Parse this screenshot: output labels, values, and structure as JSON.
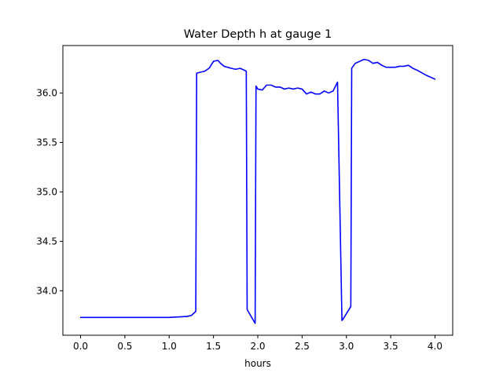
{
  "chart_data": {
    "type": "line",
    "title": "Water Depth h at gauge 1",
    "xlabel": "hours",
    "ylabel": "",
    "xlim": [
      -0.2,
      4.2
    ],
    "ylim": [
      33.55,
      36.48
    ],
    "grid": false,
    "legend": "none",
    "x_ticks": [
      0.0,
      0.5,
      1.0,
      1.5,
      2.0,
      2.5,
      3.0,
      3.5,
      4.0
    ],
    "x_tick_labels": [
      "0.0",
      "0.5",
      "1.0",
      "1.5",
      "2.0",
      "2.5",
      "3.0",
      "3.5",
      "4.0"
    ],
    "y_ticks": [
      34.0,
      34.5,
      35.0,
      35.5,
      36.0
    ],
    "y_tick_labels": [
      "34.0",
      "34.5",
      "35.0",
      "35.5",
      "36.0"
    ],
    "series": [
      {
        "color": "#0000ff",
        "x": [
          0.0,
          0.2,
          0.4,
          0.6,
          0.8,
          1.0,
          1.1,
          1.2,
          1.25,
          1.3,
          1.31,
          1.35,
          1.4,
          1.45,
          1.5,
          1.55,
          1.58,
          1.62,
          1.7,
          1.75,
          1.8,
          1.85,
          1.87,
          1.88,
          1.97,
          1.98,
          2.0,
          2.05,
          2.1,
          2.15,
          2.2,
          2.25,
          2.3,
          2.35,
          2.4,
          2.45,
          2.5,
          2.55,
          2.6,
          2.65,
          2.7,
          2.75,
          2.8,
          2.85,
          2.9,
          2.95,
          2.96,
          3.05,
          3.06,
          3.1,
          3.15,
          3.2,
          3.25,
          3.3,
          3.35,
          3.4,
          3.45,
          3.5,
          3.55,
          3.6,
          3.65,
          3.7,
          3.75,
          3.8,
          3.9,
          4.0
        ],
        "y": [
          33.73,
          33.73,
          33.73,
          33.73,
          33.73,
          33.73,
          33.735,
          33.74,
          33.75,
          33.79,
          36.2,
          36.21,
          36.22,
          36.25,
          36.32,
          36.33,
          36.3,
          36.27,
          36.25,
          36.24,
          36.25,
          36.23,
          36.22,
          33.81,
          33.67,
          36.07,
          36.04,
          36.03,
          36.08,
          36.08,
          36.06,
          36.06,
          36.04,
          36.05,
          36.04,
          36.05,
          36.04,
          35.99,
          36.01,
          35.99,
          35.99,
          36.02,
          36.0,
          36.02,
          36.11,
          33.7,
          33.71,
          33.84,
          36.25,
          36.3,
          36.32,
          36.34,
          36.33,
          36.3,
          36.31,
          36.28,
          36.26,
          36.26,
          36.26,
          36.27,
          36.27,
          36.28,
          36.25,
          36.23,
          36.18,
          36.14
        ]
      }
    ]
  }
}
